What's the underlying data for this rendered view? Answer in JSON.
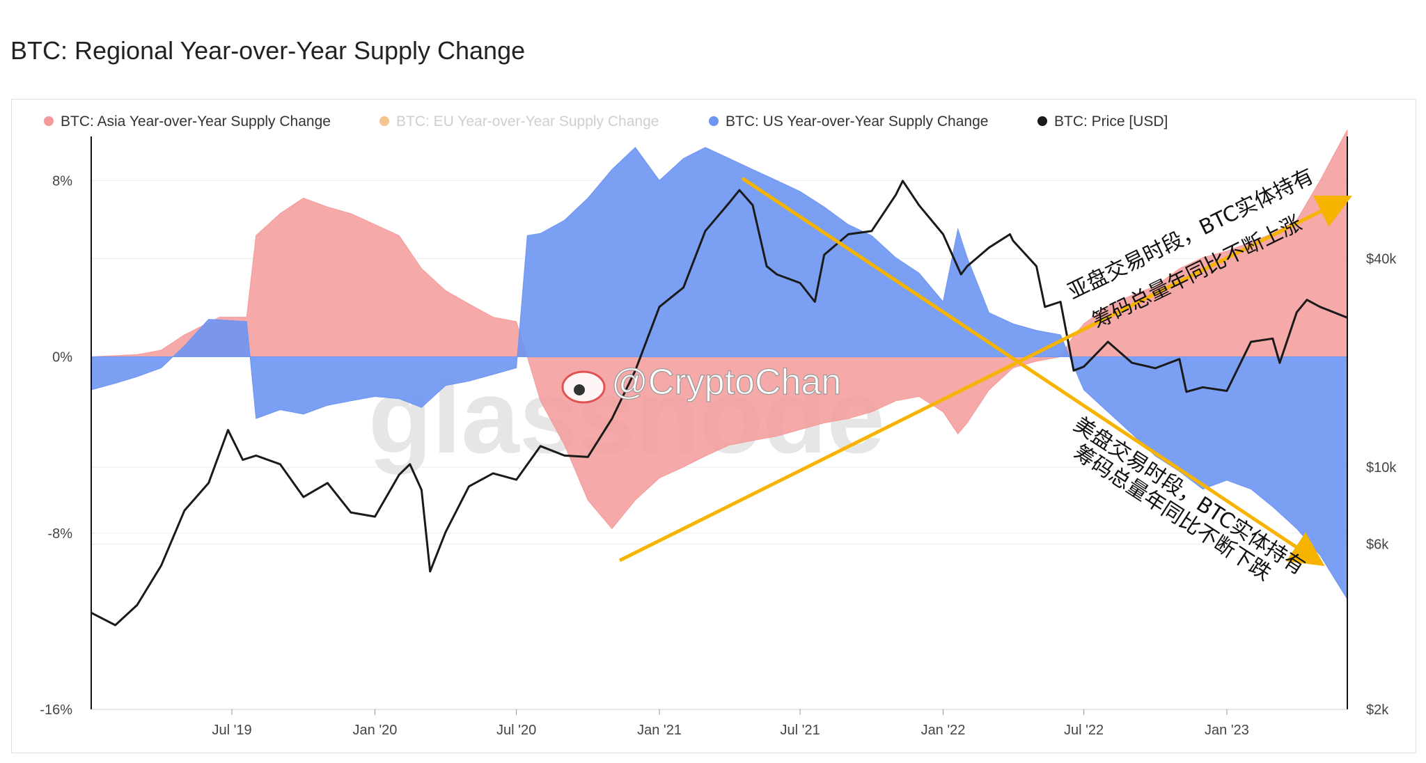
{
  "title": "BTC: Regional Year-over-Year Supply Change",
  "watermark": "@CryptoChan",
  "background_watermark": "glassnode",
  "colors": {
    "asia": "#f59a9a",
    "eu": "#f8c48e",
    "us": "#6d95f2",
    "price": "#1a1a1a",
    "arrow": "#f6b400",
    "grid": "#ececec"
  },
  "annotations": {
    "asia_line1": "亚盘交易时段，BTC实体持有",
    "asia_line2": "筹码总量年同比不断上涨",
    "us_line1": "美盘交易时段，BTC实体持有",
    "us_line2": "筹码总量年同比不断下跌"
  },
  "chart_data": {
    "type": "area",
    "title": "BTC: Regional Year-over-Year Supply Change",
    "legend": {
      "placement": "top-left",
      "entries": [
        {
          "name": "BTC: Asia Year-over-Year Supply Change",
          "color": "#f59a9a",
          "active": true
        },
        {
          "name": "BTC: EU Year-over-Year Supply Change",
          "color": "#f8c48e",
          "active": false
        },
        {
          "name": "BTC: US Year-over-Year Supply Change",
          "color": "#6d95f2",
          "active": true
        },
        {
          "name": "BTC: Price [USD]",
          "color": "#1a1a1a",
          "active": true
        }
      ]
    },
    "x_axis": {
      "range": [
        "2019-01-01",
        "2023-06-05"
      ],
      "ticks": [
        {
          "date": "2019-07-01",
          "label": "Jul '19"
        },
        {
          "date": "2020-01-01",
          "label": "Jan '20"
        },
        {
          "date": "2020-07-01",
          "label": "Jul '20"
        },
        {
          "date": "2021-01-01",
          "label": "Jan '21"
        },
        {
          "date": "2021-07-01",
          "label": "Jul '21"
        },
        {
          "date": "2022-01-01",
          "label": "Jan '22"
        },
        {
          "date": "2022-07-01",
          "label": "Jul '22"
        },
        {
          "date": "2023-01-01",
          "label": "Jan '23"
        }
      ]
    },
    "y_left": {
      "unit": "%",
      "range": [
        -16,
        10
      ],
      "ticks": [
        {
          "v": 8,
          "label": "8%"
        },
        {
          "v": 0,
          "label": "0%"
        },
        {
          "v": -8,
          "label": "-8%"
        },
        {
          "v": -16,
          "label": "-16%"
        }
      ]
    },
    "y_right": {
      "scale": "log",
      "range": [
        2000,
        90000
      ],
      "ticks": [
        {
          "v": 40000,
          "label": "$40k"
        },
        {
          "v": 10000,
          "label": "$10k"
        },
        {
          "v": 6000,
          "label": "$6k"
        },
        {
          "v": 2000,
          "label": "$2k"
        }
      ]
    },
    "grid": true,
    "series": [
      {
        "name": "BTC: Asia Year-over-Year Supply Change",
        "unit": "%",
        "points": [
          [
            "2019-01-01",
            0.0
          ],
          [
            "2019-03-01",
            0.1
          ],
          [
            "2019-04-01",
            0.3
          ],
          [
            "2019-05-01",
            1.0
          ],
          [
            "2019-06-15",
            1.8
          ],
          [
            "2019-07-20",
            1.8
          ],
          [
            "2019-08-01",
            5.5
          ],
          [
            "2019-09-01",
            6.5
          ],
          [
            "2019-10-01",
            7.2
          ],
          [
            "2019-11-01",
            6.8
          ],
          [
            "2019-12-01",
            6.5
          ],
          [
            "2020-01-01",
            6.0
          ],
          [
            "2020-02-01",
            5.5
          ],
          [
            "2020-03-01",
            4.0
          ],
          [
            "2020-04-01",
            3.0
          ],
          [
            "2020-05-01",
            2.4
          ],
          [
            "2020-06-01",
            1.8
          ],
          [
            "2020-07-01",
            1.6
          ],
          [
            "2020-07-15",
            0.0
          ],
          [
            "2020-08-01",
            -2.0
          ],
          [
            "2020-09-01",
            -4.0
          ],
          [
            "2020-10-01",
            -6.5
          ],
          [
            "2020-11-01",
            -7.8
          ],
          [
            "2020-12-01",
            -6.5
          ],
          [
            "2021-01-01",
            -5.5
          ],
          [
            "2021-02-01",
            -5.0
          ],
          [
            "2021-03-01",
            -4.5
          ],
          [
            "2021-04-01",
            -4.0
          ],
          [
            "2021-05-01",
            -3.8
          ],
          [
            "2021-06-01",
            -3.6
          ],
          [
            "2021-07-01",
            -3.3
          ],
          [
            "2021-08-01",
            -3.0
          ],
          [
            "2021-09-01",
            -2.8
          ],
          [
            "2021-10-01",
            -2.5
          ],
          [
            "2021-11-01",
            -2.0
          ],
          [
            "2021-12-01",
            -1.8
          ],
          [
            "2022-01-01",
            -2.5
          ],
          [
            "2022-01-20",
            -3.5
          ],
          [
            "2022-02-01",
            -3.0
          ],
          [
            "2022-03-01",
            -1.5
          ],
          [
            "2022-04-01",
            -0.5
          ],
          [
            "2022-05-01",
            -0.2
          ],
          [
            "2022-06-01",
            0.0
          ],
          [
            "2022-06-15",
            0.8
          ],
          [
            "2022-07-01",
            1.5
          ],
          [
            "2022-08-01",
            2.3
          ],
          [
            "2022-09-01",
            2.8
          ],
          [
            "2022-10-01",
            3.2
          ],
          [
            "2022-11-01",
            4.0
          ],
          [
            "2022-12-01",
            4.5
          ],
          [
            "2023-01-01",
            4.8
          ],
          [
            "2023-02-01",
            5.2
          ],
          [
            "2023-03-01",
            5.6
          ],
          [
            "2023-04-01",
            6.2
          ],
          [
            "2023-05-01",
            8.0
          ],
          [
            "2023-06-05",
            10.3
          ]
        ]
      },
      {
        "name": "BTC: US Year-over-Year Supply Change",
        "unit": "%",
        "points": [
          [
            "2019-01-01",
            -1.5
          ],
          [
            "2019-02-01",
            -1.2
          ],
          [
            "2019-03-01",
            -0.9
          ],
          [
            "2019-04-01",
            -0.5
          ],
          [
            "2019-05-01",
            0.5
          ],
          [
            "2019-06-01",
            1.7
          ],
          [
            "2019-07-20",
            1.6
          ],
          [
            "2019-08-01",
            -2.8
          ],
          [
            "2019-09-01",
            -2.4
          ],
          [
            "2019-10-01",
            -2.6
          ],
          [
            "2019-11-01",
            -2.2
          ],
          [
            "2019-12-01",
            -2.0
          ],
          [
            "2020-01-01",
            -1.8
          ],
          [
            "2020-02-01",
            -1.9
          ],
          [
            "2020-03-01",
            -2.3
          ],
          [
            "2020-04-01",
            -1.3
          ],
          [
            "2020-05-01",
            -1.1
          ],
          [
            "2020-06-01",
            -0.8
          ],
          [
            "2020-07-01",
            -0.5
          ],
          [
            "2020-07-15",
            5.5
          ],
          [
            "2020-08-01",
            5.6
          ],
          [
            "2020-09-01",
            6.2
          ],
          [
            "2020-10-01",
            7.2
          ],
          [
            "2020-11-01",
            8.5
          ],
          [
            "2020-12-01",
            9.5
          ],
          [
            "2021-01-01",
            8.0
          ],
          [
            "2021-02-01",
            9.0
          ],
          [
            "2021-03-01",
            9.5
          ],
          [
            "2021-04-01",
            9.0
          ],
          [
            "2021-05-01",
            8.5
          ],
          [
            "2021-06-01",
            8.0
          ],
          [
            "2021-07-01",
            7.5
          ],
          [
            "2021-08-01",
            6.8
          ],
          [
            "2021-09-01",
            6.0
          ],
          [
            "2021-10-01",
            5.5
          ],
          [
            "2021-11-01",
            4.5
          ],
          [
            "2021-12-01",
            3.8
          ],
          [
            "2022-01-01",
            2.5
          ],
          [
            "2022-01-20",
            5.8
          ],
          [
            "2022-02-01",
            4.5
          ],
          [
            "2022-03-01",
            2.0
          ],
          [
            "2022-04-01",
            1.5
          ],
          [
            "2022-05-01",
            1.2
          ],
          [
            "2022-06-01",
            1.0
          ],
          [
            "2022-06-15",
            -0.2
          ],
          [
            "2022-07-01",
            -1.5
          ],
          [
            "2022-08-01",
            -2.5
          ],
          [
            "2022-09-01",
            -3.5
          ],
          [
            "2022-10-01",
            -4.5
          ],
          [
            "2022-11-01",
            -5.2
          ],
          [
            "2022-12-01",
            -6.0
          ],
          [
            "2023-01-01",
            -5.6
          ],
          [
            "2023-02-01",
            -6.0
          ],
          [
            "2023-03-01",
            -6.8
          ],
          [
            "2023-04-01",
            -7.8
          ],
          [
            "2023-05-01",
            -9.0
          ],
          [
            "2023-06-05",
            -11.0
          ]
        ]
      },
      {
        "name": "BTC: Price [USD]",
        "unit": "USD",
        "axis": "right",
        "points": [
          [
            "2019-01-01",
            3800
          ],
          [
            "2019-02-01",
            3500
          ],
          [
            "2019-03-01",
            4000
          ],
          [
            "2019-04-01",
            5200
          ],
          [
            "2019-05-01",
            7500
          ],
          [
            "2019-06-01",
            9000
          ],
          [
            "2019-06-26",
            12800
          ],
          [
            "2019-07-15",
            10500
          ],
          [
            "2019-08-01",
            10800
          ],
          [
            "2019-09-01",
            10200
          ],
          [
            "2019-10-01",
            8200
          ],
          [
            "2019-11-01",
            9000
          ],
          [
            "2019-12-01",
            7400
          ],
          [
            "2020-01-01",
            7200
          ],
          [
            "2020-02-01",
            9500
          ],
          [
            "2020-02-15",
            10200
          ],
          [
            "2020-03-01",
            8600
          ],
          [
            "2020-03-12",
            5000
          ],
          [
            "2020-04-01",
            6500
          ],
          [
            "2020-05-01",
            8800
          ],
          [
            "2020-06-01",
            9600
          ],
          [
            "2020-07-01",
            9200
          ],
          [
            "2020-08-01",
            11500
          ],
          [
            "2020-09-01",
            10800
          ],
          [
            "2020-10-01",
            10700
          ],
          [
            "2020-11-01",
            13800
          ],
          [
            "2020-12-01",
            19000
          ],
          [
            "2021-01-01",
            29000
          ],
          [
            "2021-02-01",
            33000
          ],
          [
            "2021-03-01",
            48000
          ],
          [
            "2021-04-01",
            58000
          ],
          [
            "2021-04-14",
            63000
          ],
          [
            "2021-05-01",
            57000
          ],
          [
            "2021-05-19",
            38000
          ],
          [
            "2021-06-01",
            36000
          ],
          [
            "2021-07-01",
            34000
          ],
          [
            "2021-07-20",
            30000
          ],
          [
            "2021-08-01",
            41000
          ],
          [
            "2021-09-01",
            47000
          ],
          [
            "2021-10-01",
            48000
          ],
          [
            "2021-11-01",
            61000
          ],
          [
            "2021-11-10",
            67000
          ],
          [
            "2021-12-01",
            57000
          ],
          [
            "2022-01-01",
            47000
          ],
          [
            "2022-01-24",
            36000
          ],
          [
            "2022-02-01",
            38000
          ],
          [
            "2022-03-01",
            43000
          ],
          [
            "2022-03-28",
            47000
          ],
          [
            "2022-04-01",
            45000
          ],
          [
            "2022-05-01",
            38000
          ],
          [
            "2022-05-12",
            29000
          ],
          [
            "2022-06-01",
            30000
          ],
          [
            "2022-06-18",
            19000
          ],
          [
            "2022-07-01",
            19500
          ],
          [
            "2022-08-01",
            23000
          ],
          [
            "2022-09-01",
            20000
          ],
          [
            "2022-10-01",
            19300
          ],
          [
            "2022-11-01",
            20500
          ],
          [
            "2022-11-10",
            16500
          ],
          [
            "2022-12-01",
            17000
          ],
          [
            "2023-01-01",
            16600
          ],
          [
            "2023-02-01",
            23000
          ],
          [
            "2023-03-01",
            23500
          ],
          [
            "2023-03-10",
            20000
          ],
          [
            "2023-04-01",
            28000
          ],
          [
            "2023-04-14",
            30400
          ],
          [
            "2023-05-01",
            29000
          ],
          [
            "2023-06-05",
            27000
          ]
        ]
      }
    ]
  }
}
